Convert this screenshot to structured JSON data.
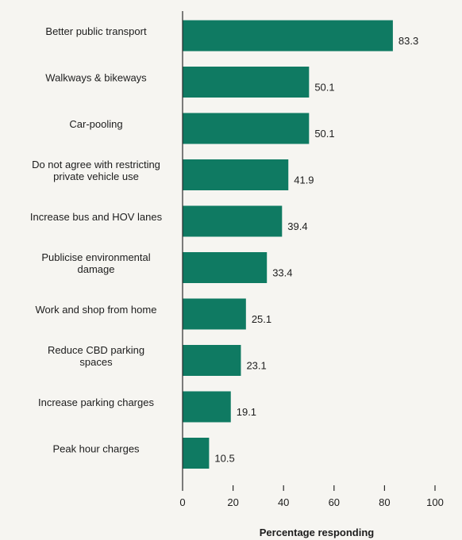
{
  "chart_data": {
    "type": "bar",
    "orientation": "horizontal",
    "categories": [
      "Better public transport",
      "Walkways & bikeways",
      "Car-pooling",
      "Do not agree with restricting private vehicle use",
      "Increase bus and HOV lanes",
      "Publicise environmental damage",
      "Work and shop from home",
      "Reduce CBD parking spaces",
      "Increase parking charges",
      "Peak hour charges"
    ],
    "category_lines": [
      [
        "Better public transport"
      ],
      [
        "Walkways & bikeways"
      ],
      [
        "Car-pooling"
      ],
      [
        "Do not agree with restricting",
        "private vehicle use"
      ],
      [
        "Increase bus and HOV lanes"
      ],
      [
        "Publicise environmental",
        "damage"
      ],
      [
        "Work and shop from home"
      ],
      [
        "Reduce CBD parking",
        "spaces"
      ],
      [
        "Increase parking charges"
      ],
      [
        "Peak hour charges"
      ]
    ],
    "values": [
      83.3,
      50.1,
      50.1,
      41.9,
      39.4,
      33.4,
      25.1,
      23.1,
      19.1,
      10.5
    ],
    "value_labels": [
      "83.3",
      "50.1",
      "50.1",
      "41.9",
      "39.4",
      "33.4",
      "25.1",
      "23.1",
      "19.1",
      "10.5"
    ],
    "xlabel": "Percentage responding",
    "xlim": [
      0,
      100
    ],
    "xticks": [
      0,
      20,
      40,
      60,
      80,
      100
    ],
    "grid": false,
    "bar_color": "#0f7a62"
  }
}
